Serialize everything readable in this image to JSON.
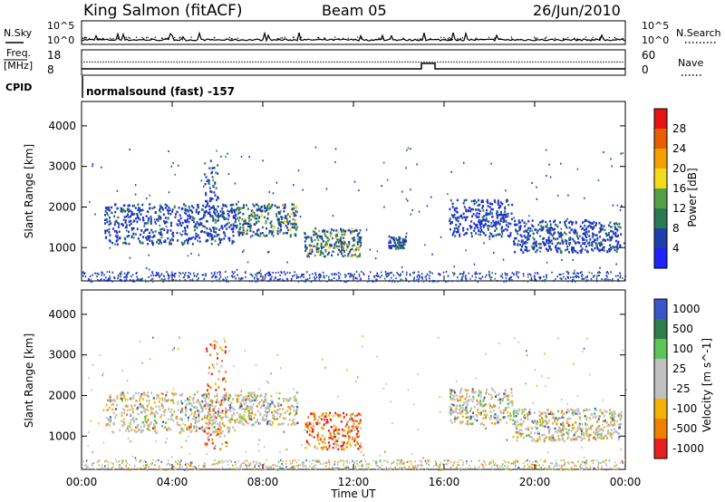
{
  "header": {
    "station": "King Salmon (fitACF)",
    "beam": "Beam 05",
    "date": "26/Jun/2010"
  },
  "top_panels": {
    "nsky_label": "N.Sky",
    "nsky_ticks": [
      "10^5",
      "10^0"
    ],
    "nsearch_label": "N.Search",
    "nsearch_ticks": [
      "10^5",
      "10^0"
    ],
    "freq_label_1": "Freq.",
    "freq_label_2": "[MHz]",
    "freq_ticks": [
      "18",
      "8"
    ],
    "nave_label": "Nave",
    "nave_ticks": [
      "60",
      "0"
    ],
    "cpid_label": "CPID",
    "cpid_text": "normalsound (fast) -157"
  },
  "chart_data": [
    {
      "type": "heatmap",
      "name": "power-panel",
      "ylabel": "Slant Range [km]",
      "y_ticks": [
        1000,
        2000,
        3000,
        4000
      ],
      "ylim": [
        180,
        4600
      ],
      "xlim": [
        0,
        24
      ],
      "colorbar_label": "Power [dB]",
      "colorbar_ticks": [
        "4",
        "8",
        "12",
        "16",
        "20",
        "24",
        "28"
      ],
      "colorbar_colors": [
        "#1e22ff",
        "#1f3fa8",
        "#2b7a54",
        "#54a046",
        "#f0dc1a",
        "#f5a000",
        "#e85d00",
        "#e61414"
      ],
      "regions": [
        {
          "t": [
            1.0,
            6.8
          ],
          "r": [
            1100,
            2100
          ],
          "level": "mid"
        },
        {
          "t": [
            5.4,
            6.0
          ],
          "r": [
            1800,
            3200
          ],
          "level": "mid"
        },
        {
          "t": [
            6.8,
            9.5
          ],
          "r": [
            1300,
            2100
          ],
          "level": "high"
        },
        {
          "t": [
            9.8,
            12.3
          ],
          "r": [
            800,
            1500
          ],
          "level": "high"
        },
        {
          "t": [
            13.5,
            14.3
          ],
          "r": [
            1000,
            1300
          ],
          "level": "mid"
        },
        {
          "t": [
            16.2,
            19.0
          ],
          "r": [
            1300,
            2200
          ],
          "level": "low"
        },
        {
          "t": [
            19.0,
            23.8
          ],
          "r": [
            900,
            1700
          ],
          "level": "mid"
        }
      ]
    },
    {
      "type": "heatmap",
      "name": "velocity-panel",
      "ylabel": "Slant Range [km]",
      "y_ticks": [
        1000,
        2000,
        3000,
        4000
      ],
      "ylim": [
        180,
        4600
      ],
      "xlim": [
        0,
        24
      ],
      "xlabel": "Time UT",
      "x_ticks": [
        "00:00",
        "04:00",
        "08:00",
        "12:00",
        "16:00",
        "20:00",
        "00:00"
      ],
      "x_tick_values": [
        0,
        4,
        8,
        12,
        16,
        20,
        24
      ],
      "colorbar_label": "Velocity [m s^-1]",
      "colorbar_ticks": [
        "1000",
        "500",
        "100",
        "25",
        "-25",
        "-100",
        "-500",
        "-1000"
      ],
      "colorbar_colors": [
        "#3b56c8",
        "#2e7d4a",
        "#5ec45a",
        "#c0c0c0",
        "#c0c0c0",
        "#f2b400",
        "#f08000",
        "#e82020"
      ],
      "regions": [
        {
          "t": [
            1.0,
            6.8
          ],
          "r": [
            1100,
            2100
          ],
          "sign": "grey"
        },
        {
          "t": [
            5.4,
            6.4
          ],
          "r": [
            700,
            3400
          ],
          "sign": "neg"
        },
        {
          "t": [
            6.8,
            9.5
          ],
          "r": [
            1300,
            2100
          ],
          "sign": "grey"
        },
        {
          "t": [
            9.8,
            12.3
          ],
          "r": [
            700,
            1600
          ],
          "sign": "neg"
        },
        {
          "t": [
            16.2,
            19.0
          ],
          "r": [
            1300,
            2200
          ],
          "sign": "grey"
        },
        {
          "t": [
            19.0,
            23.8
          ],
          "r": [
            900,
            1700
          ],
          "sign": "grey"
        }
      ]
    }
  ]
}
